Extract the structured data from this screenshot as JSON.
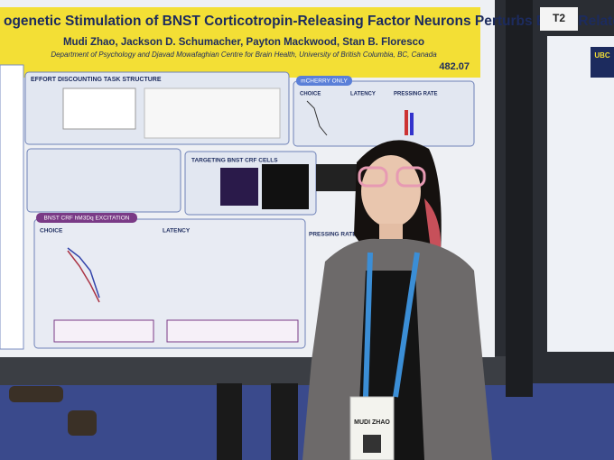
{
  "poster": {
    "title": "ogenetic Stimulation of BNST Corticotropin-Releasing Factor Neurons Perturbs Effort-Related Choice",
    "authors": "Mudi Zhao, Jackson D. Schumacher, Payton Mackwood, Stan B. Floresco",
    "affiliation": "Department of Psychology and Djavad Mowafaghian Centre for Brain Health, University of British Columbia, BC, Canada",
    "number": "482.07",
    "sections": {
      "task": "EFFORT DISCOUNTING TASK STRUCTURE",
      "mcherry": "mCHERRY ONLY",
      "targeting": "TARGETING BNST CRF CELLS",
      "excitation": "BNST CRF hM3Dq EXCITATION"
    },
    "panel_labels": {
      "choice": "CHOICE",
      "latency": "LATENCY",
      "pressing_rate": "PRESSING RATE"
    }
  },
  "board_sign": "T2",
  "neighbor_logo": "UBC",
  "badge": "MUDI ZHAO"
}
